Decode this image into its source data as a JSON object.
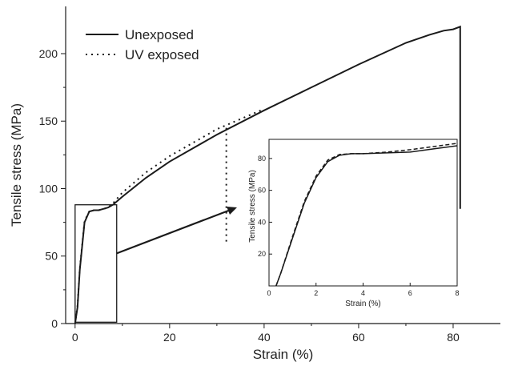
{
  "chart_data": [
    {
      "type": "line",
      "title": "",
      "xlabel": "Strain (%)",
      "ylabel": "Tensile stress (MPa)",
      "xlim": [
        -2,
        90
      ],
      "ylim": [
        0,
        235
      ],
      "x_ticks": [
        0,
        20,
        40,
        60,
        80
      ],
      "y_ticks": [
        0,
        50,
        100,
        150,
        200
      ],
      "legend_position": "top-left",
      "series": [
        {
          "name": "Unexposed",
          "style": "solid",
          "x": [
            0,
            0.5,
            1,
            2,
            3,
            4,
            5,
            6,
            7,
            8,
            10,
            15,
            20,
            30,
            40,
            50,
            60,
            70,
            75,
            78,
            80,
            81.5,
            81.5
          ],
          "y": [
            0,
            12,
            40,
            75,
            83,
            84,
            84,
            85,
            86,
            88,
            94,
            108,
            120,
            140,
            158,
            175,
            192,
            208,
            214,
            217,
            218,
            220,
            85
          ]
        },
        {
          "name": "UV exposed",
          "style": "dotted",
          "x": [
            0,
            0.5,
            1,
            2,
            3,
            4,
            5,
            6,
            7,
            8,
            10,
            15,
            20,
            30,
            40
          ],
          "y": [
            0,
            13,
            41,
            76,
            83,
            84,
            84,
            85,
            86,
            89,
            97,
            112,
            124,
            144,
            159
          ]
        }
      ],
      "annotation_marker_x": 32
    },
    {
      "type": "line",
      "title": "",
      "xlabel": "Strain (%)",
      "ylabel": "Tensile stress (MPa)",
      "xlim": [
        0,
        8
      ],
      "ylim": [
        0,
        92
      ],
      "x_ticks": [
        0,
        2,
        4,
        6,
        8
      ],
      "y_ticks": [
        20,
        40,
        60,
        80
      ],
      "series": [
        {
          "style": "solid",
          "x": [
            0.3,
            0.5,
            1,
            1.5,
            2,
            2.5,
            3,
            3.5,
            4,
            5,
            6,
            7,
            8
          ],
          "y": [
            0,
            8,
            30,
            52,
            68,
            78,
            82,
            83,
            83,
            83.5,
            84,
            86,
            88
          ]
        },
        {
          "style": "dashed",
          "x": [
            0.3,
            0.5,
            1,
            1.5,
            2,
            2.5,
            3,
            3.5,
            4,
            5,
            6,
            7,
            8
          ],
          "y": [
            0,
            8,
            31,
            53,
            69,
            79,
            82.5,
            83,
            83,
            84,
            85.5,
            87.5,
            89.5
          ]
        }
      ]
    }
  ]
}
